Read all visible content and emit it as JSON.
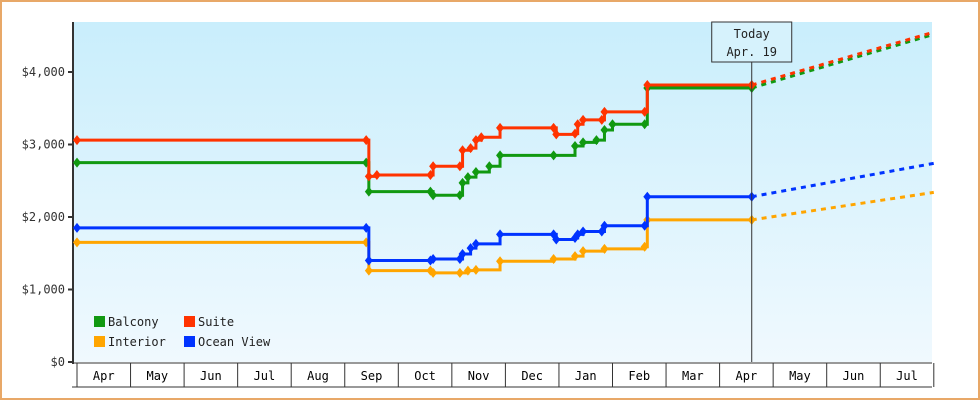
{
  "chart_data": {
    "type": "line",
    "title": "",
    "xlabel": "",
    "ylabel": "",
    "ylim": [
      0,
      4600
    ],
    "y_ticks": [
      {
        "value": 0,
        "label": "$0"
      },
      {
        "value": 1000,
        "label": "$1,000"
      },
      {
        "value": 2000,
        "label": "$2,000"
      },
      {
        "value": 3000,
        "label": "$3,000"
      },
      {
        "value": 4000,
        "label": "$4,000"
      }
    ],
    "x_months": [
      "Apr",
      "May",
      "Jun",
      "Jul",
      "Aug",
      "Sep",
      "Oct",
      "Nov",
      "Dec",
      "Jan",
      "Feb",
      "Mar",
      "Apr",
      "May",
      "Jun",
      "Jul"
    ],
    "grid": false,
    "legend_position": "bottom-left inside",
    "today_marker": {
      "line1": "Today",
      "line2": "Apr. 19",
      "month_index": 12.6
    },
    "series": [
      {
        "name": "Balcony",
        "color": "#119911",
        "points": [
          [
            0,
            2750
          ],
          [
            5.4,
            2750
          ],
          [
            5.45,
            2350
          ],
          [
            6.6,
            2350
          ],
          [
            6.65,
            2300
          ],
          [
            7.15,
            2300
          ],
          [
            7.2,
            2470
          ],
          [
            7.3,
            2550
          ],
          [
            7.45,
            2620
          ],
          [
            7.7,
            2700
          ],
          [
            7.9,
            2850
          ],
          [
            8.9,
            2850
          ],
          [
            9.3,
            2980
          ],
          [
            9.45,
            3030
          ],
          [
            9.7,
            3060
          ],
          [
            9.85,
            3200
          ],
          [
            10.0,
            3280
          ],
          [
            10.6,
            3280
          ],
          [
            10.65,
            3780
          ],
          [
            12.6,
            3780
          ]
        ],
        "forecast": [
          [
            12.6,
            3780
          ],
          [
            16,
            4520
          ]
        ]
      },
      {
        "name": "Suite",
        "color": "#ff3300",
        "points": [
          [
            0,
            3060
          ],
          [
            5.4,
            3060
          ],
          [
            5.45,
            2560
          ],
          [
            5.6,
            2580
          ],
          [
            6.6,
            2580
          ],
          [
            6.65,
            2700
          ],
          [
            7.15,
            2700
          ],
          [
            7.2,
            2920
          ],
          [
            7.35,
            2950
          ],
          [
            7.45,
            3060
          ],
          [
            7.55,
            3100
          ],
          [
            7.9,
            3230
          ],
          [
            8.9,
            3230
          ],
          [
            8.95,
            3140
          ],
          [
            9.3,
            3150
          ],
          [
            9.35,
            3280
          ],
          [
            9.45,
            3340
          ],
          [
            9.8,
            3340
          ],
          [
            9.85,
            3450
          ],
          [
            10.6,
            3450
          ],
          [
            10.65,
            3820
          ],
          [
            12.6,
            3820
          ]
        ],
        "forecast": [
          [
            12.6,
            3820
          ],
          [
            16,
            4550
          ]
        ]
      },
      {
        "name": "Interior",
        "color": "#ffa500",
        "points": [
          [
            0,
            1650
          ],
          [
            5.4,
            1650
          ],
          [
            5.45,
            1260
          ],
          [
            6.6,
            1260
          ],
          [
            6.65,
            1230
          ],
          [
            7.15,
            1230
          ],
          [
            7.3,
            1260
          ],
          [
            7.45,
            1270
          ],
          [
            7.9,
            1390
          ],
          [
            8.9,
            1420
          ],
          [
            9.3,
            1460
          ],
          [
            9.45,
            1530
          ],
          [
            9.85,
            1560
          ],
          [
            10.6,
            1590
          ],
          [
            10.65,
            1960
          ],
          [
            12.6,
            1960
          ]
        ],
        "forecast": [
          [
            12.6,
            1960
          ],
          [
            16,
            2340
          ]
        ]
      },
      {
        "name": "Ocean View",
        "color": "#0033ff",
        "points": [
          [
            0,
            1850
          ],
          [
            5.4,
            1850
          ],
          [
            5.45,
            1400
          ],
          [
            6.6,
            1400
          ],
          [
            6.65,
            1420
          ],
          [
            7.15,
            1420
          ],
          [
            7.2,
            1490
          ],
          [
            7.35,
            1570
          ],
          [
            7.45,
            1630
          ],
          [
            7.9,
            1760
          ],
          [
            8.9,
            1760
          ],
          [
            8.95,
            1690
          ],
          [
            9.3,
            1710
          ],
          [
            9.35,
            1760
          ],
          [
            9.45,
            1800
          ],
          [
            9.8,
            1800
          ],
          [
            9.85,
            1880
          ],
          [
            10.6,
            1880
          ],
          [
            10.65,
            2280
          ],
          [
            12.6,
            2280
          ]
        ],
        "forecast": [
          [
            12.6,
            2280
          ],
          [
            16,
            2740
          ]
        ]
      }
    ]
  },
  "legend": {
    "items": [
      {
        "label": "Balcony",
        "color": "#119911"
      },
      {
        "label": "Suite",
        "color": "#ff3300"
      },
      {
        "label": "Interior",
        "color": "#ffa500"
      },
      {
        "label": "Ocean View",
        "color": "#0033ff"
      }
    ]
  },
  "today": {
    "line1": "Today",
    "line2": "Apr. 19"
  }
}
